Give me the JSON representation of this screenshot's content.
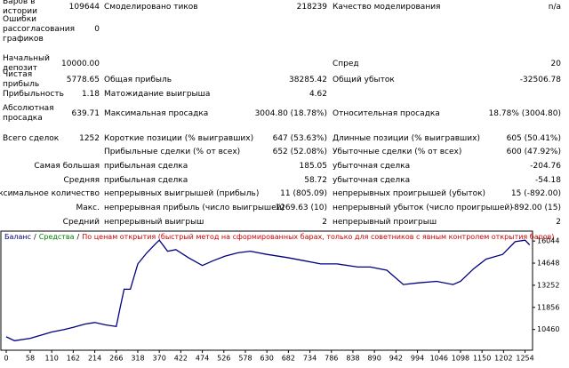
{
  "report": {
    "rows": [
      [
        "Баров в истории",
        "109644",
        "Смоделировано тиков",
        "218239",
        "Качество моделирования",
        "n/a"
      ],
      [
        "Ошибки рассогласования графиков",
        "0",
        null,
        null,
        null,
        null
      ],
      [
        "Начальный депозит",
        "10000.00",
        null,
        null,
        "Спред",
        "20"
      ],
      [
        "Чистая прибыль",
        "5778.65",
        "Общая прибыль",
        "38285.42",
        "Общий убыток",
        "-32506.78"
      ],
      [
        "Прибыльность",
        "1.18",
        "Матожидание выигрыша",
        "4.62",
        null,
        null
      ],
      [
        "Абсолютная просадка",
        "639.71",
        "Максимальная просадка",
        "3004.80 (18.78%)",
        "Относительная просадка",
        "18.78% (3004.80)"
      ],
      [
        "Всего сделок",
        "1252",
        "Короткие позиции (% выигравших)",
        "647 (53.63%)",
        "Длинные позиции (% выигравших)",
        "605 (50.41%)"
      ],
      [
        null,
        null,
        "Прибыльные сделки (% от всех)",
        "652 (52.08%)",
        "Убыточные сделки (% от всех)",
        "600 (47.92%)"
      ],
      [
        null,
        "Самая большая",
        "прибыльная сделка",
        "185.05",
        "убыточная сделка",
        "-204.76"
      ],
      [
        null,
        "Средняя",
        "прибыльная сделка",
        "58.72",
        "убыточная сделка",
        "-54.18"
      ],
      [
        null,
        "Максимальное количество",
        "непрерывных выигрышей (прибыль)",
        "11 (805.09)",
        "непрерывных проигрышей (убыток)",
        "15 (-892.00)"
      ],
      [
        null,
        "Макс.",
        "непрерывная прибыль (число выигрышей)",
        "1269.63 (10)",
        "непрерывный убыток (число проигрышей)",
        "-892.00 (15)"
      ],
      [
        null,
        "Средний",
        "непрерывный выигрыш",
        "2",
        "непрерывный проигрыш",
        "2"
      ]
    ]
  },
  "chart_data": {
    "type": "line",
    "legend_separator": "/",
    "note": "По ценам открытия (быстрый метод на сформированных барах, только для советников с явным контролем открытия баров)",
    "note_color": "#cc0000",
    "series": [
      {
        "name": "Баланс",
        "color": "#000080",
        "x": [
          0,
          20,
          58,
          90,
          110,
          140,
          162,
          190,
          214,
          240,
          266,
          275,
          285,
          300,
          318,
          340,
          362,
          370,
          390,
          410,
          440,
          474,
          500,
          530,
          560,
          590,
          630,
          680,
          720,
          760,
          800,
          850,
          880,
          920,
          960,
          994,
          1040,
          1080,
          1098,
          1130,
          1160,
          1200,
          1230,
          1254,
          1265
        ],
        "values": [
          10000,
          9750,
          9900,
          10150,
          10300,
          10450,
          10600,
          10800,
          10900,
          10750,
          10650,
          11800,
          13000,
          13000,
          14600,
          15300,
          15900,
          16100,
          15400,
          15500,
          15000,
          14500,
          14800,
          15100,
          15300,
          15400,
          15200,
          15000,
          14800,
          14600,
          14600,
          14400,
          14400,
          14200,
          13300,
          13400,
          13500,
          13300,
          13500,
          14300,
          14900,
          15200,
          16000,
          16100,
          15800
        ]
      },
      {
        "name": "Средства",
        "color": "#008000"
      }
    ],
    "xlim": [
      0,
      1270
    ],
    "xticks": [
      0,
      58,
      110,
      162,
      214,
      266,
      318,
      370,
      422,
      474,
      526,
      578,
      630,
      682,
      734,
      786,
      838,
      890,
      942,
      994,
      1046,
      1098,
      1150,
      1202,
      1254
    ],
    "ylim": [
      9150,
      16670
    ],
    "yticks": [
      10460,
      11856,
      13252,
      14648,
      16044
    ]
  }
}
